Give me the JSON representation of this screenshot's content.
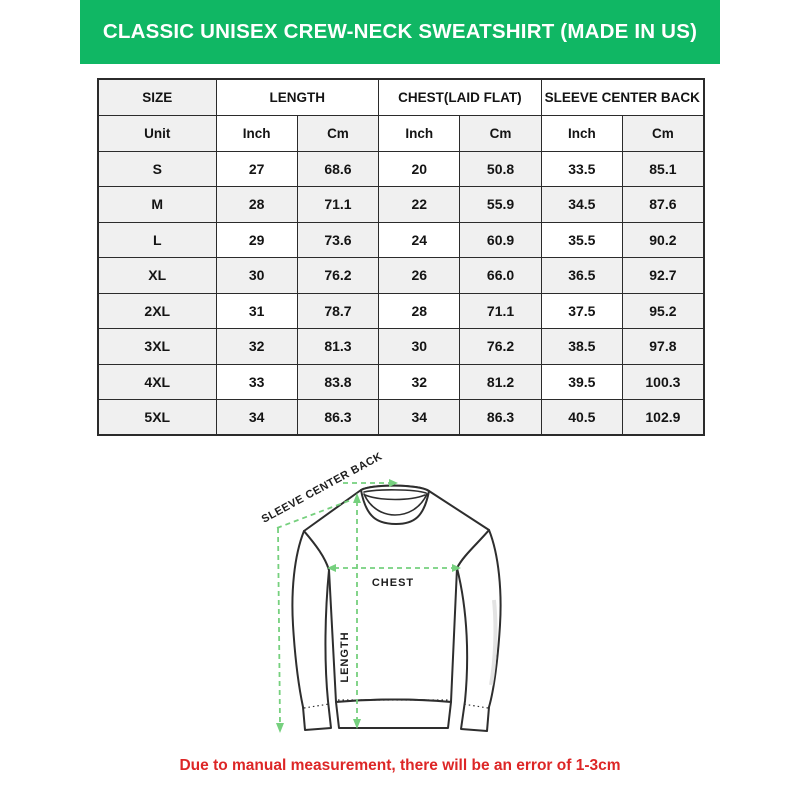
{
  "header": {
    "title": "CLASSIC UNISEX CREW-NECK SWEATSHIRT (MADE IN US)",
    "bg_color": "#10b764",
    "text_color": "#ffffff"
  },
  "size_chart": {
    "column_groups": {
      "size": "SIZE",
      "length": "LENGTH",
      "chest": "CHEST(LAID FLAT)",
      "sleeve": "SLEEVE CENTER BACK"
    },
    "unit_row": {
      "label": "Unit",
      "units": [
        "Inch",
        "Cm",
        "Inch",
        "Cm",
        "Inch",
        "Cm"
      ]
    },
    "rows": [
      {
        "size": "S",
        "values": [
          "27",
          "68.6",
          "20",
          "50.8",
          "33.5",
          "85.1"
        ]
      },
      {
        "size": "M",
        "values": [
          "28",
          "71.1",
          "22",
          "55.9",
          "34.5",
          "87.6"
        ]
      },
      {
        "size": "L",
        "values": [
          "29",
          "73.6",
          "24",
          "60.9",
          "35.5",
          "90.2"
        ]
      },
      {
        "size": "XL",
        "values": [
          "30",
          "76.2",
          "26",
          "66.0",
          "36.5",
          "92.7"
        ]
      },
      {
        "size": "2XL",
        "values": [
          "31",
          "78.7",
          "28",
          "71.1",
          "37.5",
          "95.2"
        ]
      },
      {
        "size": "3XL",
        "values": [
          "32",
          "81.3",
          "30",
          "76.2",
          "38.5",
          "97.8"
        ]
      },
      {
        "size": "4XL",
        "values": [
          "33",
          "83.8",
          "32",
          "81.2",
          "39.5",
          "100.3"
        ]
      },
      {
        "size": "5XL",
        "values": [
          "34",
          "86.3",
          "34",
          "86.3",
          "40.5",
          "102.9"
        ]
      }
    ],
    "shade_color": "#f0f0f0",
    "border_color": "#2b2b2b"
  },
  "diagram": {
    "labels": {
      "sleeve_center_back": "SLEEVE CENTER BACK",
      "chest": "CHEST",
      "length": "LENGTH"
    },
    "arrow_color": "#76d07e",
    "outline_color": "#2e2e2e"
  },
  "footnote": {
    "text": "Due to manual measurement, there will be an error of 1-3cm",
    "color": "#dd2626"
  }
}
